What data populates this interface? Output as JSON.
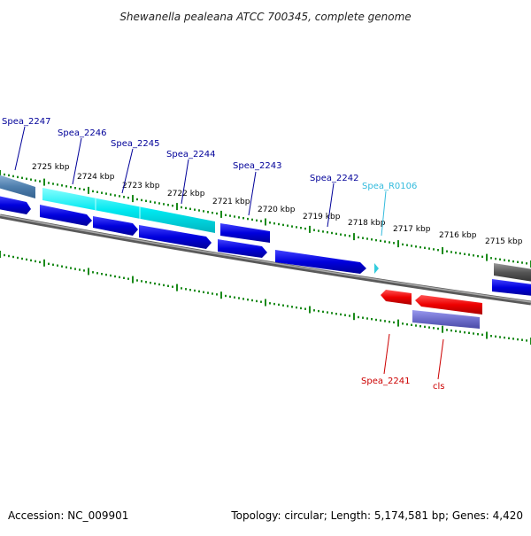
{
  "title": "Shewanella pealeana ATCC 700345, complete genome",
  "footer": {
    "accession": "Accession: NC_009901",
    "summary": "Topology: circular; Length: 5,174,581 bp; Genes: 4,420"
  },
  "colors": {
    "forward_cds": "#0000ee",
    "reverse_cds": "#ee0000",
    "rna": "#33ccdd",
    "highlight": "#00e5ee",
    "backbone": "#888888",
    "tick": "#1a8a1a",
    "forward_label": "#000099",
    "reverse_label": "#cc0000",
    "rna_label": "#33bbdd"
  },
  "axis": {
    "unit": "kbp",
    "tick_labels": [
      "2725 kbp",
      "2724 kbp",
      "2723 kbp",
      "2722 kbp",
      "2721 kbp",
      "2720 kbp",
      "2719 kbp",
      "2718 kbp",
      "2717 kbp",
      "2716 kbp",
      "2715 kbp"
    ]
  },
  "gene_labels": [
    {
      "text": "Spea_2247",
      "strand": "forward"
    },
    {
      "text": "Spea_2246",
      "strand": "forward"
    },
    {
      "text": "Spea_2245",
      "strand": "forward"
    },
    {
      "text": "Spea_2244",
      "strand": "forward"
    },
    {
      "text": "Spea_2243",
      "strand": "forward"
    },
    {
      "text": "Spea_2242",
      "strand": "forward"
    },
    {
      "text": "Spea_R0106",
      "strand": "rna"
    },
    {
      "text": "Spea_2241",
      "strand": "reverse"
    },
    {
      "text": "cls",
      "strand": "reverse"
    }
  ]
}
